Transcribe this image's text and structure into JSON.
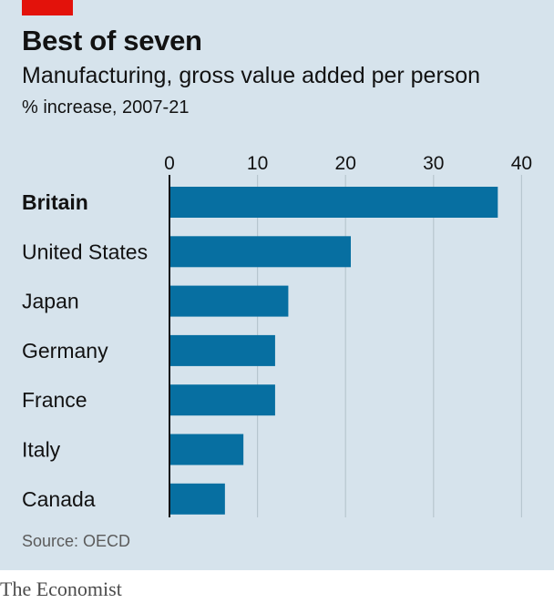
{
  "header": {
    "title": "Best of seven",
    "subtitle": "Manufacturing, gross value added per person",
    "unit": "% increase, 2007-21"
  },
  "colors": {
    "background": "#d6e3ec",
    "bar": "#076fa1",
    "accent": "#e3120b",
    "gridline": "#b7c6cf",
    "axis": "#121212"
  },
  "chart_data": {
    "type": "bar",
    "orientation": "horizontal",
    "categories": [
      "Britain",
      "United States",
      "Japan",
      "Germany",
      "France",
      "Italy",
      "Canada"
    ],
    "values": [
      37.3,
      20.6,
      13.5,
      12.0,
      12.0,
      8.4,
      6.3
    ],
    "highlighted_category": "Britain",
    "xlim": [
      0,
      40
    ],
    "xticks": [
      0,
      10,
      20,
      30,
      40
    ],
    "tick_axis_position": "top",
    "grid": true
  },
  "footer": {
    "source": "Source: OECD",
    "brand": "The Economist"
  }
}
